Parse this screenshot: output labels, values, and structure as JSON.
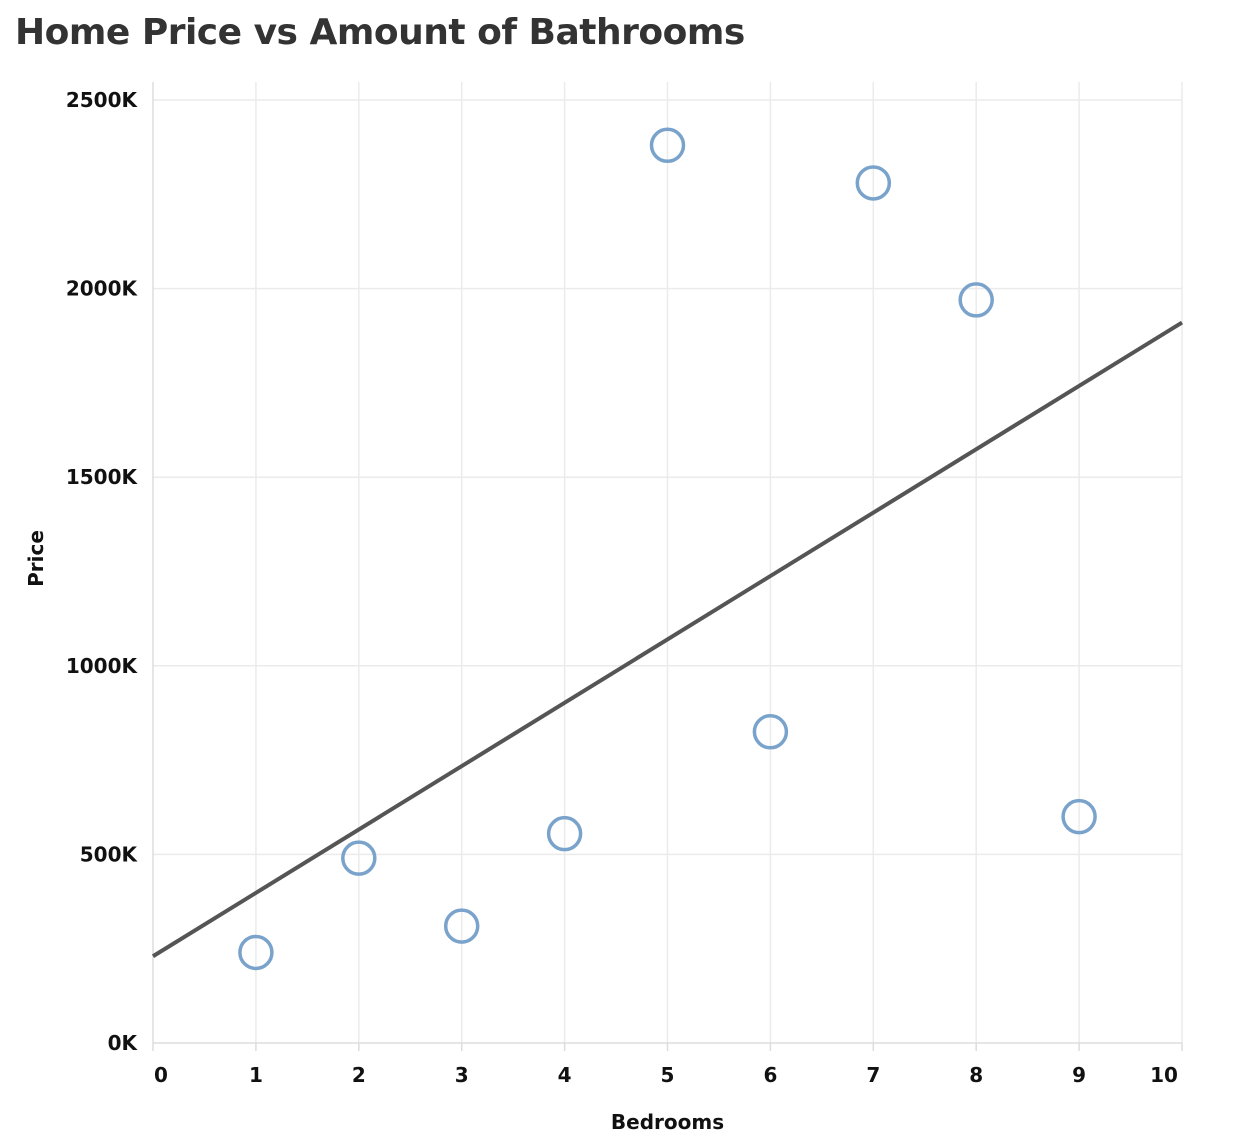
{
  "chart_data": {
    "type": "scatter",
    "title": "Home Price vs Amount of Bathrooms",
    "xlabel": "Bedrooms",
    "ylabel": "Price",
    "xlim": [
      0,
      10
    ],
    "ylim": [
      0,
      2500000
    ],
    "x_ticks": [
      "0",
      "1",
      "2",
      "3",
      "4",
      "5",
      "6",
      "7",
      "8",
      "9",
      "10"
    ],
    "y_ticks": [
      "0K",
      "500K",
      "1000K",
      "1500K",
      "2000K",
      "2500K"
    ],
    "grid": true,
    "series": [
      {
        "points": [
          {
            "x": 1,
            "y": 240000
          },
          {
            "x": 2,
            "y": 490000
          },
          {
            "x": 3,
            "y": 310000
          },
          {
            "x": 4,
            "y": 555000
          },
          {
            "x": 5,
            "y": 2380000
          },
          {
            "x": 6,
            "y": 825000
          },
          {
            "x": 7,
            "y": 2280000
          },
          {
            "x": 8,
            "y": 1970000
          },
          {
            "x": 9,
            "y": 600000
          }
        ],
        "marker": "hollow-circle",
        "color": "#7aa3cc"
      }
    ],
    "trend_line": {
      "start": {
        "x": 0,
        "y": 230000
      },
      "end": {
        "x": 10,
        "y": 1910000
      },
      "color": "#555555"
    }
  }
}
